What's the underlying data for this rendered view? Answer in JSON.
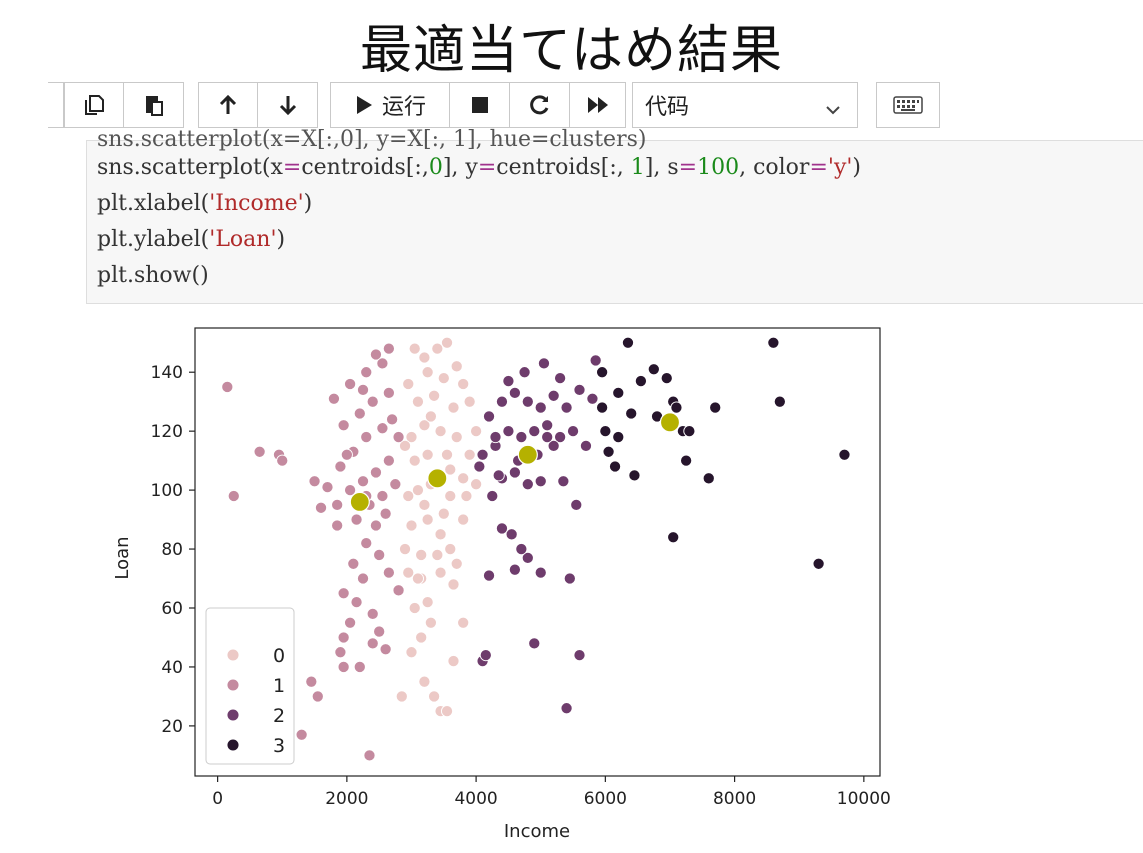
{
  "slide": {
    "title": "最適当てはめ結果"
  },
  "toolbar": {
    "buttons": [
      {
        "name": "copy-cells-icon"
      },
      {
        "name": "paste-cells-icon"
      },
      {
        "name": "move-up-icon"
      },
      {
        "name": "move-down-icon"
      },
      {
        "name": "run-icon"
      },
      {
        "name": "stop-icon"
      },
      {
        "name": "restart-icon"
      },
      {
        "name": "run-all-icon"
      },
      {
        "name": "keyboard-icon"
      }
    ],
    "run_label": "运行",
    "cell_type_selected": "代码"
  },
  "code": {
    "lines": [
      {
        "segments": [
          {
            "t": "sns.scatterplot(x=X[:,0], y=X[:, 1], hue=clusters)",
            "c": "plain"
          }
        ]
      },
      {
        "segments": [
          {
            "t": "sns.scatterplot(x",
            "c": "plain"
          },
          {
            "t": "=",
            "c": "op"
          },
          {
            "t": "centroids[:,",
            "c": "plain"
          },
          {
            "t": "0",
            "c": "num"
          },
          {
            "t": "], y",
            "c": "plain"
          },
          {
            "t": "=",
            "c": "op"
          },
          {
            "t": "centroids[:, ",
            "c": "plain"
          },
          {
            "t": "1",
            "c": "num"
          },
          {
            "t": "], s",
            "c": "plain"
          },
          {
            "t": "=",
            "c": "op"
          },
          {
            "t": "100",
            "c": "num"
          },
          {
            "t": ", color",
            "c": "plain"
          },
          {
            "t": "=",
            "c": "op"
          },
          {
            "t": "'y'",
            "c": "str"
          },
          {
            "t": ")",
            "c": "plain"
          }
        ]
      },
      {
        "segments": [
          {
            "t": "plt.xlabel(",
            "c": "plain"
          },
          {
            "t": "'Income'",
            "c": "str"
          },
          {
            "t": ")",
            "c": "plain"
          }
        ]
      },
      {
        "segments": [
          {
            "t": "plt.ylabel(",
            "c": "plain"
          },
          {
            "t": "'Loan'",
            "c": "str"
          },
          {
            "t": ")",
            "c": "plain"
          }
        ]
      },
      {
        "segments": [
          {
            "t": "plt.show()",
            "c": "plain"
          }
        ]
      }
    ]
  },
  "chart_data": {
    "type": "scatter",
    "xlabel": "Income",
    "ylabel": "Loan",
    "xlim": [
      -350,
      10250
    ],
    "ylim": [
      3,
      155
    ],
    "xticks": [
      0,
      2000,
      4000,
      6000,
      8000,
      10000
    ],
    "yticks": [
      20,
      40,
      60,
      80,
      100,
      120,
      140
    ],
    "grid": false,
    "legend": {
      "position": "lower-left",
      "entries": [
        "0",
        "1",
        "2",
        "3"
      ]
    },
    "colors": {
      "0": "#ecc9c6",
      "1": "#c48a9f",
      "2": "#6e3c6c",
      "3": "#26152c",
      "centroid": "#b5b100"
    },
    "series": [
      {
        "name": "0",
        "color": "#ecc9c6",
        "points": [
          [
            2850,
            30
          ],
          [
            3000,
            45
          ],
          [
            3150,
            70
          ],
          [
            3200,
            35
          ],
          [
            3300,
            55
          ],
          [
            3350,
            30
          ],
          [
            3450,
            25
          ],
          [
            3550,
            25
          ],
          [
            3650,
            42
          ],
          [
            3800,
            55
          ],
          [
            3050,
            60
          ],
          [
            3250,
            62
          ],
          [
            3100,
            70
          ],
          [
            3450,
            72
          ],
          [
            2950,
            72
          ],
          [
            3150,
            78
          ],
          [
            3400,
            78
          ],
          [
            3600,
            80
          ],
          [
            3700,
            75
          ],
          [
            2900,
            80
          ],
          [
            3000,
            88
          ],
          [
            3250,
            90
          ],
          [
            3500,
            92
          ],
          [
            3800,
            90
          ],
          [
            2950,
            98
          ],
          [
            3100,
            100
          ],
          [
            3300,
            102
          ],
          [
            3600,
            98
          ],
          [
            3850,
            98
          ],
          [
            4000,
            102
          ],
          [
            3050,
            110
          ],
          [
            3250,
            112
          ],
          [
            3550,
            112
          ],
          [
            3900,
            112
          ],
          [
            3000,
            118
          ],
          [
            3200,
            122
          ],
          [
            3450,
            120
          ],
          [
            3700,
            118
          ],
          [
            4000,
            120
          ],
          [
            3100,
            130
          ],
          [
            3350,
            132
          ],
          [
            3650,
            128
          ],
          [
            2950,
            136
          ],
          [
            3250,
            140
          ],
          [
            3500,
            138
          ],
          [
            3800,
            136
          ],
          [
            3200,
            145
          ],
          [
            3400,
            148
          ],
          [
            3550,
            150
          ],
          [
            3050,
            148
          ],
          [
            3700,
            142
          ],
          [
            3900,
            130
          ],
          [
            3300,
            125
          ],
          [
            2900,
            115
          ],
          [
            3600,
            107
          ],
          [
            3800,
            104
          ],
          [
            3200,
            95
          ],
          [
            3450,
            85
          ],
          [
            3650,
            68
          ],
          [
            3150,
            50
          ]
        ]
      },
      {
        "name": "1",
        "color": "#c48a9f",
        "points": [
          [
            150,
            135
          ],
          [
            250,
            98
          ],
          [
            650,
            113
          ],
          [
            950,
            112
          ],
          [
            1000,
            110
          ],
          [
            1300,
            17
          ],
          [
            1450,
            35
          ],
          [
            1550,
            30
          ],
          [
            1900,
            45
          ],
          [
            2350,
            10
          ],
          [
            1950,
            50
          ],
          [
            2050,
            55
          ],
          [
            2150,
            62
          ],
          [
            2250,
            70
          ],
          [
            2400,
            58
          ],
          [
            2500,
            52
          ],
          [
            2600,
            46
          ],
          [
            1950,
            65
          ],
          [
            2100,
            75
          ],
          [
            2300,
            82
          ],
          [
            2450,
            88
          ],
          [
            2600,
            92
          ],
          [
            1850,
            95
          ],
          [
            2050,
            100
          ],
          [
            2250,
            103
          ],
          [
            2450,
            106
          ],
          [
            2650,
            110
          ],
          [
            1900,
            108
          ],
          [
            2100,
            113
          ],
          [
            2300,
            118
          ],
          [
            2550,
            121
          ],
          [
            1950,
            122
          ],
          [
            2200,
            126
          ],
          [
            2400,
            130
          ],
          [
            2650,
            133
          ],
          [
            1800,
            131
          ],
          [
            2050,
            136
          ],
          [
            2300,
            140
          ],
          [
            2550,
            143
          ],
          [
            2650,
            148
          ],
          [
            2450,
            146
          ],
          [
            2250,
            134
          ],
          [
            2700,
            124
          ],
          [
            2800,
            118
          ],
          [
            1700,
            101
          ],
          [
            1600,
            94
          ],
          [
            1500,
            103
          ],
          [
            1850,
            88
          ],
          [
            2150,
            90
          ],
          [
            2350,
            95
          ],
          [
            2550,
            98
          ],
          [
            2750,
            102
          ],
          [
            2000,
            112
          ],
          [
            2300,
            98
          ],
          [
            2500,
            78
          ],
          [
            2650,
            72
          ],
          [
            2200,
            40
          ],
          [
            2800,
            66
          ],
          [
            2400,
            48
          ],
          [
            1950,
            40
          ]
        ]
      },
      {
        "name": "2",
        "color": "#6e3c6c",
        "points": [
          [
            4100,
            42
          ],
          [
            4150,
            44
          ],
          [
            4900,
            48
          ],
          [
            5400,
            26
          ],
          [
            5600,
            44
          ],
          [
            4200,
            71
          ],
          [
            4400,
            87
          ],
          [
            4600,
            73
          ],
          [
            4800,
            77
          ],
          [
            5000,
            72
          ],
          [
            5450,
            70
          ],
          [
            4550,
            85
          ],
          [
            4700,
            80
          ],
          [
            4250,
            98
          ],
          [
            4400,
            104
          ],
          [
            4600,
            106
          ],
          [
            4800,
            102
          ],
          [
            5000,
            103
          ],
          [
            5350,
            103
          ],
          [
            5550,
            95
          ],
          [
            4100,
            112
          ],
          [
            4300,
            115
          ],
          [
            4500,
            120
          ],
          [
            4700,
            118
          ],
          [
            4900,
            120
          ],
          [
            5100,
            122
          ],
          [
            5300,
            118
          ],
          [
            5500,
            120
          ],
          [
            5700,
            115
          ],
          [
            4200,
            125
          ],
          [
            4400,
            130
          ],
          [
            4600,
            133
          ],
          [
            4800,
            130
          ],
          [
            5000,
            128
          ],
          [
            5200,
            132
          ],
          [
            5400,
            128
          ],
          [
            5600,
            134
          ],
          [
            5800,
            131
          ],
          [
            4500,
            137
          ],
          [
            4750,
            140
          ],
          [
            5050,
            143
          ],
          [
            5300,
            138
          ],
          [
            5850,
            144
          ],
          [
            4300,
            118
          ],
          [
            4650,
            110
          ],
          [
            4950,
            112
          ],
          [
            5200,
            115
          ],
          [
            4350,
            105
          ],
          [
            4050,
            108
          ],
          [
            5100,
            118
          ]
        ]
      },
      {
        "name": "3",
        "color": "#26152c",
        "points": [
          [
            5950,
            140
          ],
          [
            6350,
            150
          ],
          [
            6550,
            137
          ],
          [
            6750,
            141
          ],
          [
            6950,
            138
          ],
          [
            7050,
            130
          ],
          [
            7050,
            84
          ],
          [
            7100,
            128
          ],
          [
            7200,
            120
          ],
          [
            7250,
            110
          ],
          [
            7300,
            120
          ],
          [
            7600,
            104
          ],
          [
            7700,
            128
          ],
          [
            8600,
            150
          ],
          [
            8700,
            130
          ],
          [
            9300,
            75
          ],
          [
            9700,
            112
          ],
          [
            6000,
            120
          ],
          [
            6150,
            108
          ],
          [
            6200,
            118
          ],
          [
            6450,
            105
          ],
          [
            5950,
            128
          ],
          [
            6200,
            133
          ],
          [
            6400,
            126
          ],
          [
            6800,
            125
          ],
          [
            6050,
            113
          ]
        ]
      }
    ],
    "centroids": [
      [
        2200,
        96
      ],
      [
        3400,
        104
      ],
      [
        4800,
        112
      ],
      [
        7000,
        123
      ]
    ]
  }
}
